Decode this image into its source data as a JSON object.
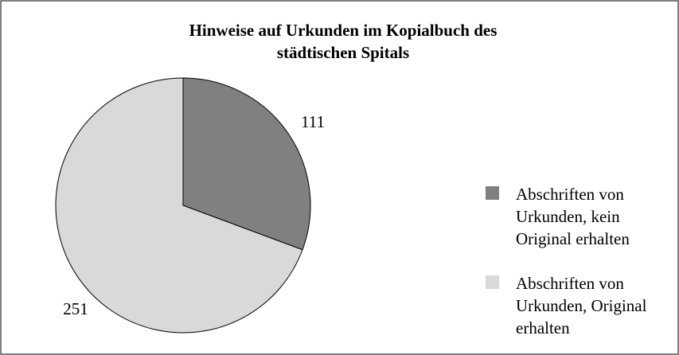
{
  "chart_data": {
    "type": "pie",
    "title": "Hinweise auf Urkunden im Kopialbuch des städtischen Spitals",
    "categories": [
      "Abschriften von Urkunden, kein Original erhalten",
      "Abschriften von Urkunden, Original erhalten"
    ],
    "values": [
      111,
      251
    ],
    "colors": [
      "#808080",
      "#d9d9d9"
    ],
    "legend": "right"
  }
}
